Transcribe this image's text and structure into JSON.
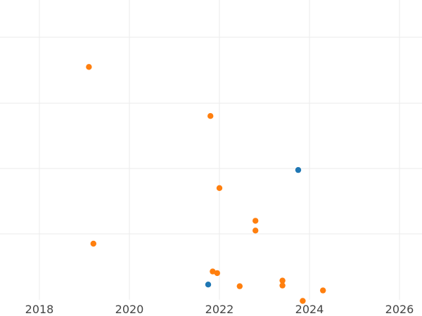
{
  "chart_data": {
    "type": "scatter",
    "title": "",
    "xlabel": "",
    "ylabel": "",
    "xlim": [
      2017.1,
      2026.5
    ],
    "ylim": [
      0,
      10
    ],
    "x_ticks": [
      2018,
      2020,
      2022,
      2024,
      2026
    ],
    "x_tick_labels": [
      "2018",
      "2020",
      "2022",
      "2024",
      "2026"
    ],
    "y_gridlines": [
      2,
      4,
      6,
      8,
      10
    ],
    "y_tick_labels_visible": false,
    "grid": true,
    "legend": "none",
    "series": [
      {
        "color": "#ff7f0e",
        "points": [
          {
            "x": 2019.1,
            "y": 7.1
          },
          {
            "x": 2021.8,
            "y": 5.6
          },
          {
            "x": 2022.0,
            "y": 3.4
          },
          {
            "x": 2022.8,
            "y": 2.4
          },
          {
            "x": 2022.8,
            "y": 2.1
          },
          {
            "x": 2019.2,
            "y": 1.7
          },
          {
            "x": 2021.85,
            "y": 0.85
          },
          {
            "x": 2021.95,
            "y": 0.8
          },
          {
            "x": 2023.4,
            "y": 0.57
          },
          {
            "x": 2022.45,
            "y": 0.4
          },
          {
            "x": 2023.4,
            "y": 0.42
          },
          {
            "x": 2024.3,
            "y": 0.27
          },
          {
            "x": 2023.85,
            "y": -0.05
          }
        ]
      },
      {
        "color": "#1f77b4",
        "points": [
          {
            "x": 2023.75,
            "y": 3.95
          },
          {
            "x": 2021.75,
            "y": 0.45
          }
        ]
      }
    ]
  }
}
